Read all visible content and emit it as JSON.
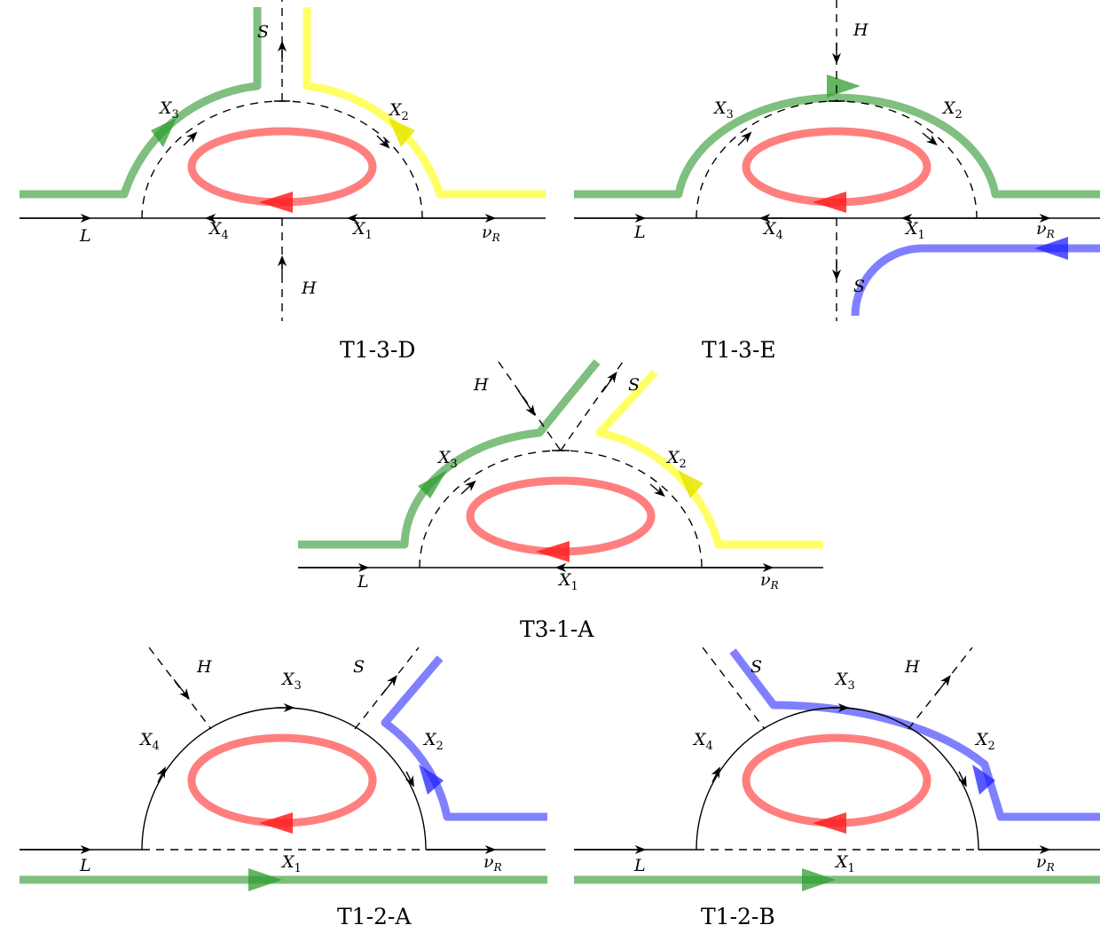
{
  "colors": {
    "green": "#7fbf7f",
    "yellow": "#ffff66",
    "red": "#ff7f7f",
    "blue": "#8080ff",
    "arrow_green": "#2e9e2e",
    "arrow_yellow": "#e6e600",
    "arrow_red": "#ff2020",
    "arrow_blue": "#2020ff"
  },
  "diagrams": {
    "t13d": {
      "caption": "T1-3-D",
      "labels": {
        "S": "S",
        "H": "H",
        "L": "L",
        "X1": "X1",
        "X2": "X2",
        "X3": "X3",
        "X4": "X4",
        "nuR": "νR"
      }
    },
    "t13e": {
      "caption": "T1-3-E",
      "labels": {
        "S": "S",
        "H": "H",
        "L": "L",
        "X1": "X1",
        "X2": "X2",
        "X3": "X3",
        "X4": "X4",
        "nuR": "νR"
      }
    },
    "t31a": {
      "caption": "T3-1-A",
      "labels": {
        "S": "S",
        "H": "H",
        "L": "L",
        "X1": "X1",
        "X2": "X2",
        "X3": "X3",
        "nuR": "νR"
      }
    },
    "t12a": {
      "caption": "T1-2-A",
      "labels": {
        "S": "S",
        "H": "H",
        "L": "L",
        "X1": "X1",
        "X2": "X2",
        "X3": "X3",
        "X4": "X4",
        "nuR": "νR"
      }
    },
    "t12b": {
      "caption": "T1-2-B",
      "labels": {
        "S": "S",
        "H": "H",
        "L": "L",
        "X1": "X1",
        "X2": "X2",
        "X3": "X3",
        "X4": "X4",
        "nuR": "νR"
      }
    }
  }
}
